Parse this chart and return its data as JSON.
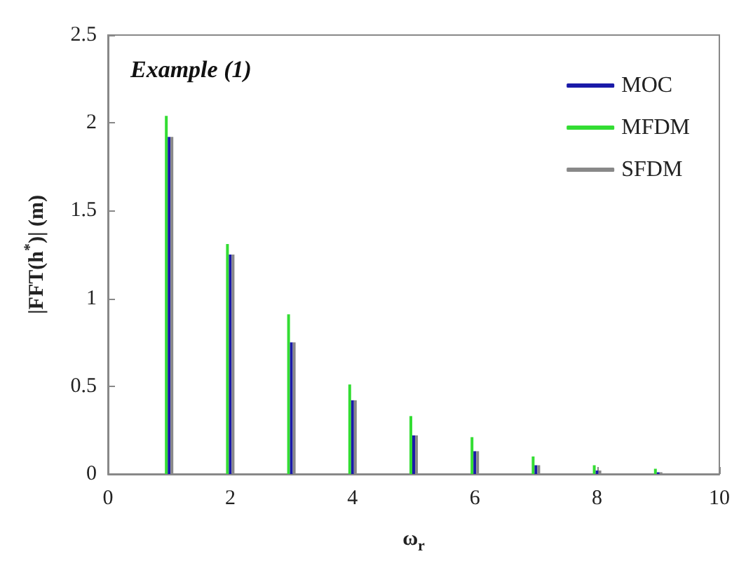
{
  "chart_data": {
    "type": "bar",
    "title": "Example (1)",
    "xlabel": "ω$_{r}$",
    "ylabel": "|FFT(h$^{*}$)| (m)",
    "x": [
      1,
      2,
      3,
      4,
      5,
      6,
      7,
      8,
      9,
      10
    ],
    "series": [
      {
        "name": "MFDM",
        "color": "#33dd33",
        "values": [
          2.04,
          1.31,
          0.91,
          0.51,
          0.33,
          0.21,
          0.1,
          0.05,
          0.03,
          0
        ]
      },
      {
        "name": "MOC",
        "color": "#1a1aa8",
        "values": [
          1.92,
          1.25,
          0.75,
          0.42,
          0.22,
          0.13,
          0.05,
          0.02,
          0.01,
          0
        ]
      },
      {
        "name": "SFDM",
        "color": "#888888",
        "values": [
          1.92,
          1.25,
          0.75,
          0.42,
          0.22,
          0.13,
          0.05,
          0.02,
          0.01,
          0
        ]
      }
    ],
    "xlim": [
      0,
      10
    ],
    "xticks": [
      0,
      2,
      4,
      6,
      8,
      10
    ],
    "ylim": [
      0,
      2.5
    ],
    "yticks": [
      0,
      0.5,
      1,
      1.5,
      2,
      2.5
    ],
    "legend": "top right"
  }
}
